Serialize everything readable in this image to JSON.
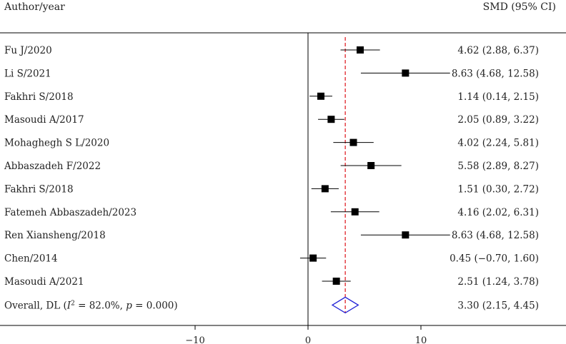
{
  "chart_data": {
    "type": "forest",
    "title": "",
    "header_left": "Author/year",
    "header_right": "SMD (95% CI)",
    "xlim": [
      -20,
      13
    ],
    "xticks": [
      -10,
      0,
      10
    ],
    "tick_labels": [
      "−10",
      "0",
      "10"
    ],
    "reference_line": 0,
    "overall_line": 3.3,
    "studies": [
      {
        "label": "Fu J/2020",
        "est": 4.62,
        "lo": 2.88,
        "hi": 6.37,
        "text": "4.62 (2.88, 6.37)"
      },
      {
        "label": "Li S/2021",
        "est": 8.63,
        "lo": 4.68,
        "hi": 12.58,
        "text": "8.63 (4.68, 12.58)"
      },
      {
        "label": "Fakhri S/2018",
        "est": 1.14,
        "lo": 0.14,
        "hi": 2.15,
        "text": "1.14 (0.14, 2.15)"
      },
      {
        "label": "Masoudi A/2017",
        "est": 2.05,
        "lo": 0.89,
        "hi": 3.22,
        "text": "2.05 (0.89, 3.22)"
      },
      {
        "label": "Mohaghegh S L/2020",
        "est": 4.02,
        "lo": 2.24,
        "hi": 5.81,
        "text": "4.02 (2.24, 5.81)"
      },
      {
        "label": "Abbaszadeh F/2022",
        "est": 5.58,
        "lo": 2.89,
        "hi": 8.27,
        "text": "5.58 (2.89, 8.27)"
      },
      {
        "label": "Fakhri S/2018",
        "est": 1.51,
        "lo": 0.3,
        "hi": 2.72,
        "text": "1.51 (0.30, 2.72)"
      },
      {
        "label": "Fatemeh Abbaszadeh/2023",
        "est": 4.16,
        "lo": 2.02,
        "hi": 6.31,
        "text": "4.16 (2.02, 6.31)"
      },
      {
        "label": "Ren Xiansheng/2018",
        "est": 8.63,
        "lo": 4.68,
        "hi": 12.58,
        "text": "8.63 (4.68, 12.58)"
      },
      {
        "label": "Chen/2014",
        "est": 0.45,
        "lo": -0.7,
        "hi": 1.6,
        "text": "0.45 (−0.70, 1.60)"
      },
      {
        "label": "Masoudi A/2021",
        "est": 2.51,
        "lo": 1.24,
        "hi": 3.78,
        "text": "2.51 (1.24, 3.78)"
      }
    ],
    "overall": {
      "label_prefix": "Overall, DL (",
      "i_symbol": "I",
      "i_sup": "2",
      "i_value": " = 82.0%, ",
      "p_symbol": "p",
      "p_value": " = 0.000)",
      "est": 3.3,
      "lo": 2.15,
      "hi": 4.45,
      "text": "3.30 (2.15, 4.45)"
    },
    "colors": {
      "marker": "#000000",
      "diamond": "#1f1fd6",
      "overall_line": "#e0242a",
      "axis": "#000000"
    },
    "grid": false
  }
}
